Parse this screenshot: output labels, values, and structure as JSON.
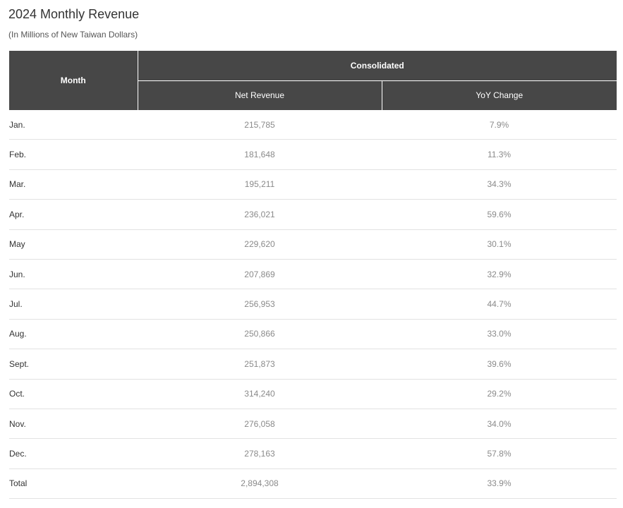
{
  "header": {
    "title": "2024 Monthly Revenue",
    "subtitle": "(In Millions of New Taiwan Dollars)"
  },
  "table": {
    "columns": {
      "month": "Month",
      "group": "Consolidated",
      "net_revenue": "Net Revenue",
      "yoy_change": "YoY Change"
    },
    "rows": [
      {
        "month": "Jan.",
        "net_revenue": "215,785",
        "yoy_change": "7.9%"
      },
      {
        "month": "Feb.",
        "net_revenue": "181,648",
        "yoy_change": "11.3%"
      },
      {
        "month": "Mar.",
        "net_revenue": "195,211",
        "yoy_change": "34.3%"
      },
      {
        "month": "Apr.",
        "net_revenue": "236,021",
        "yoy_change": "59.6%"
      },
      {
        "month": "May",
        "net_revenue": "229,620",
        "yoy_change": "30.1%"
      },
      {
        "month": "Jun.",
        "net_revenue": "207,869",
        "yoy_change": "32.9%"
      },
      {
        "month": "Jul.",
        "net_revenue": "256,953",
        "yoy_change": "44.7%"
      },
      {
        "month": "Aug.",
        "net_revenue": "250,866",
        "yoy_change": "33.0%"
      },
      {
        "month": "Sept.",
        "net_revenue": "251,873",
        "yoy_change": "39.6%"
      },
      {
        "month": "Oct.",
        "net_revenue": "314,240",
        "yoy_change": "29.2%"
      },
      {
        "month": "Nov.",
        "net_revenue": "276,058",
        "yoy_change": "34.0%"
      },
      {
        "month": "Dec.",
        "net_revenue": "278,163",
        "yoy_change": "57.8%"
      },
      {
        "month": "Total",
        "net_revenue": "2,894,308",
        "yoy_change": "33.9%"
      }
    ]
  },
  "colors": {
    "header_bg": "#474747",
    "header_text": "#ffffff",
    "row_divider": "#e2e2e2",
    "value_text": "#8a8a8a"
  }
}
